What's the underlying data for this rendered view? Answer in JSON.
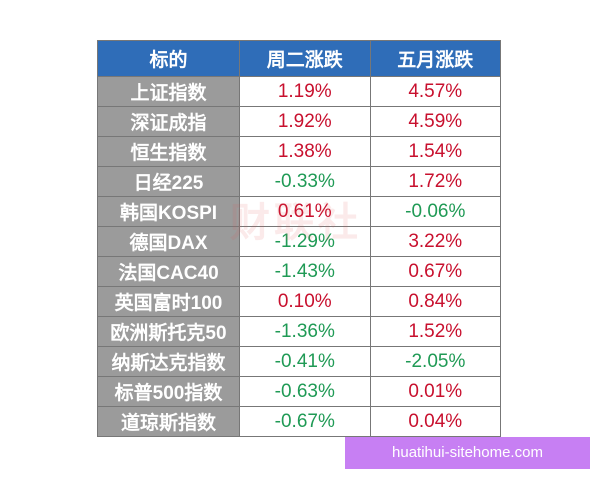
{
  "table": {
    "header": [
      "标的",
      "周二涨跌",
      "五月涨跌"
    ],
    "rows": [
      [
        "上证指数",
        "1.19%",
        "4.57%"
      ],
      [
        "深证成指",
        "1.92%",
        "4.59%"
      ],
      [
        "恒生指数",
        "1.38%",
        "1.54%"
      ],
      [
        "日经225",
        "-0.33%",
        "1.72%"
      ],
      [
        "韩国KOSPI",
        "0.61%",
        "-0.06%"
      ],
      [
        "德国DAX",
        "-1.29%",
        "3.22%"
      ],
      [
        "法国CAC40",
        "-1.43%",
        "0.67%"
      ],
      [
        "英国富时100",
        "0.10%",
        "0.84%"
      ],
      [
        "欧洲斯托克50",
        "-1.36%",
        "1.52%"
      ],
      [
        "纳斯达克指数",
        "-0.41%",
        "-2.05%"
      ],
      [
        "标普500指数",
        "-0.63%",
        "0.01%"
      ],
      [
        "道琼斯指数",
        "-0.67%",
        "0.04%"
      ]
    ]
  },
  "watermark": "财联社",
  "banner": "huatihui-sitehome.com"
}
